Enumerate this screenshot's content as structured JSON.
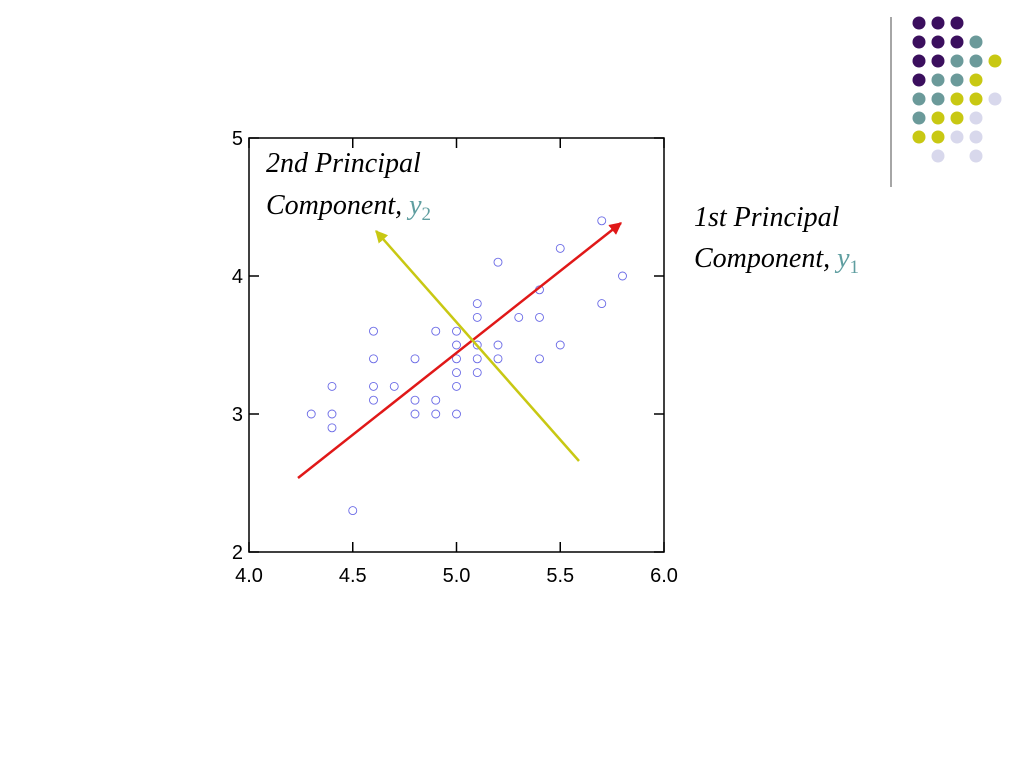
{
  "chart_data": {
    "type": "scatter",
    "x": [
      4.3,
      4.4,
      4.4,
      4.4,
      4.5,
      4.6,
      4.6,
      4.6,
      4.6,
      4.7,
      4.8,
      4.8,
      4.8,
      4.9,
      4.9,
      4.9,
      5.0,
      5.0,
      5.0,
      5.0,
      5.0,
      5.0,
      5.1,
      5.1,
      5.1,
      5.1,
      5.1,
      5.2,
      5.2,
      5.2,
      5.3,
      5.4,
      5.4,
      5.4,
      5.5,
      5.5,
      5.7,
      5.7,
      5.8
    ],
    "values": [
      3.0,
      3.2,
      3.0,
      2.9,
      2.3,
      3.6,
      3.4,
      3.2,
      3.1,
      3.2,
      3.4,
      3.1,
      3.0,
      3.6,
      3.1,
      3.0,
      3.6,
      3.5,
      3.4,
      3.3,
      3.2,
      3.0,
      3.8,
      3.7,
      3.5,
      3.4,
      3.3,
      4.1,
      3.5,
      3.4,
      3.7,
      3.9,
      3.7,
      3.4,
      4.2,
      3.5,
      4.4,
      3.8,
      4.0
    ],
    "color": "#6a6ae6",
    "xlim": [
      4.0,
      6.0
    ],
    "ylim": [
      2,
      5
    ],
    "xticks": [
      {
        "value": 4.0,
        "label": "4.0"
      },
      4.5,
      {
        "value": 5.0,
        "label": "5.0"
      },
      5.5,
      {
        "value": 6.0,
        "label": "6.0"
      }
    ],
    "yticks": [
      2,
      3,
      4,
      5
    ],
    "annotations": [
      {
        "line1": "2nd Principal",
        "line2": "Component,",
        "var": "y",
        "sub": "2"
      },
      {
        "line1": "1st Principal",
        "line2": "Component,",
        "var": "y",
        "sub": "1"
      }
    ]
  }
}
